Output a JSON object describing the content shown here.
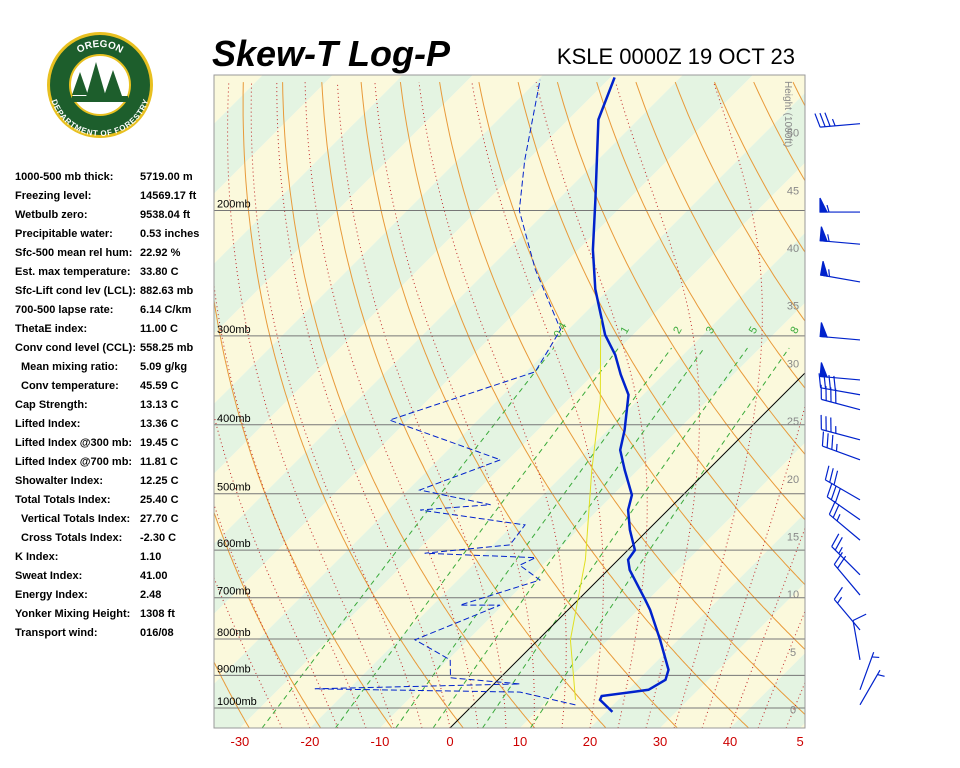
{
  "logo": {
    "top": "OREGON",
    "bottom": "DEPARTMENT OF FORESTRY"
  },
  "stats": [
    [
      "1000-500 mb thick:",
      "5719.00 m"
    ],
    [
      "Freezing level:",
      "14569.17 ft"
    ],
    [
      "Wetbulb zero:",
      "9538.04 ft"
    ],
    [
      "Precipitable water:",
      "0.53 inches"
    ],
    [
      "Sfc-500 mean rel hum:",
      "22.92 %"
    ],
    [
      "Est. max temperature:",
      "33.80 C"
    ],
    [
      "Sfc-Lift cond lev (LCL):",
      "882.63 mb"
    ],
    [
      "700-500 lapse rate:",
      "6.14 C/km"
    ],
    [
      "ThetaE index:",
      "11.00 C"
    ],
    [
      "Conv cond level (CCL):",
      "558.25 mb"
    ],
    [
      "Mean mixing ratio:",
      "5.09 g/kg"
    ],
    [
      "Conv temperature:",
      "45.59 C"
    ],
    [
      "Cap Strength:",
      "13.13 C"
    ],
    [
      "Lifted Index:",
      "13.36 C"
    ],
    [
      "Lifted Index @300 mb:",
      "19.45 C"
    ],
    [
      "Lifted Index @700 mb:",
      "11.81 C"
    ],
    [
      "Showalter Index:",
      "12.25 C"
    ],
    [
      "Total Totals Index:",
      "25.40 C"
    ],
    [
      "Vertical Totals Index:",
      "27.70 C"
    ],
    [
      "Cross Totals Index:",
      "-2.30 C"
    ],
    [
      "K Index:",
      "1.10"
    ],
    [
      "Sweat Index:",
      "41.00"
    ],
    [
      "Energy Index:",
      "2.48"
    ],
    [
      "Yonker Mixing Height:",
      "1308 ft"
    ],
    [
      "Transport wind:",
      "016/08"
    ]
  ],
  "chart_data": {
    "type": "skewt",
    "title": "Skew-T Log-P",
    "subtitle": "KSLE 0000Z 19 OCT 23",
    "xlim": [
      -33.7,
      50.7
    ],
    "xticks": [
      -30,
      -20,
      -10,
      0,
      10,
      20,
      30,
      40,
      {
        "value": 50,
        "label": "5"
      }
    ],
    "plim": [
      1067,
      129
    ],
    "pticks": [
      {
        "value": 200,
        "label": "200mb"
      },
      {
        "value": 300,
        "label": "300mb"
      },
      {
        "value": 400,
        "label": "400mb"
      },
      {
        "value": 500,
        "label": "500mb"
      },
      {
        "value": 600,
        "label": "600mb"
      },
      {
        "value": 700,
        "label": "700mb"
      },
      {
        "value": 800,
        "label": "800mb"
      },
      {
        "value": 900,
        "label": "900mb"
      },
      {
        "value": 1000,
        "label": "1000mb"
      }
    ],
    "height_label": "Height (1000ft)",
    "height_lim": [
      -1.6,
      55
    ],
    "height_ticks": [
      0,
      5,
      10,
      15,
      20,
      25,
      30,
      35,
      40,
      45,
      50
    ],
    "mixing_ratios": [
      0.4,
      1,
      2,
      3,
      5,
      8
    ],
    "series": [
      {
        "color": "#0022cc",
        "dash": false,
        "pressure": [
          1013,
          974,
          962,
          943,
          913,
          884,
          802,
          728,
          705,
          640,
          619,
          600,
          562,
          527,
          502,
          463,
          434,
          407,
          363,
          340,
          319,
          299,
          258,
          227,
          193,
          149,
          130
        ],
        "temperature": [
          20.9,
          17.4,
          17.1,
          22.9,
          23.9,
          22.9,
          17.4,
          11.7,
          9.6,
          3.1,
          1.4,
          1.0,
          -2.6,
          -5.7,
          -7.3,
          -11.9,
          -15.4,
          -17.6,
          -22.1,
          -26.1,
          -29.7,
          -34,
          -41.9,
          -47.9,
          -54.7,
          -65.7,
          -69.4
        ]
      },
      {
        "color": "#0022cc",
        "dash": true,
        "pressure": [
          990,
          950,
          940,
          925,
          907,
          856,
          802,
          717,
          717,
          661,
          630,
          615,
          606,
          590,
          553,
          527,
          518,
          494,
          448,
          394,
          337,
          294,
          242,
          200,
          170,
          131
        ],
        "temperature": [
          14.6,
          4.9,
          -24.9,
          3.7,
          -7.1,
          -9.7,
          -17.6,
          -10.4,
          -16.1,
          -8.3,
          -13.3,
          -12.1,
          -28.6,
          -17.6,
          -18.3,
          -35.4,
          -26.1,
          -38.3,
          -31.1,
          -52.6,
          -38.7,
          -41.1,
          -53.3,
          -64,
          -70.4,
          -79.7
        ]
      },
      {
        "color": "#e0e020",
        "dash": false,
        "pressure": [
          974,
          802,
          619,
          463,
          369,
          284
        ],
        "temperature": [
          13.9,
          4.6,
          -4.7,
          -16.6,
          -25.4,
          -36.9
        ]
      }
    ],
    "winds": {
      "pressure": [
        151,
        201,
        223,
        252,
        304,
        346,
        363,
        381,
        420,
        448,
        510,
        544,
        581,
        650,
        694,
        777,
        856,
        943,
        990
      ],
      "direction": [
        265,
        270,
        275,
        280,
        275,
        275,
        280,
        285,
        285,
        290,
        300,
        305,
        310,
        315,
        320,
        320,
        350,
        20,
        30
      ],
      "speed": [
        35,
        55,
        55,
        55,
        50,
        50,
        40,
        40,
        35,
        35,
        30,
        30,
        25,
        25,
        20,
        15,
        10,
        5,
        5
      ]
    }
  }
}
